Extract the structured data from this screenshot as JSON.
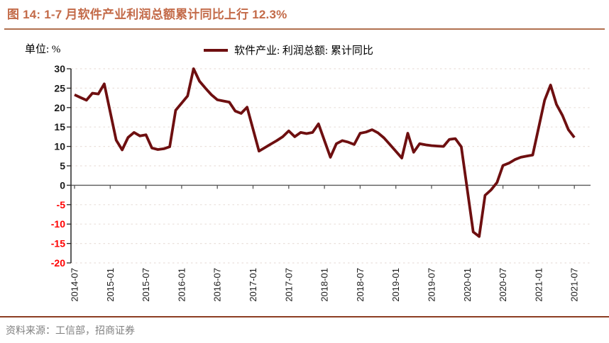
{
  "header": {
    "title": "图 14:  1-7 月软件产业利润总额累计同比上行 12.3%"
  },
  "footer": {
    "source_prefix": "资料来源：",
    "source_text": "工信部，招商证券"
  },
  "chart_data": {
    "type": "line",
    "title": "1-7 月软件产业利润总额累计同比上行 12.3%",
    "unit_label": "单位: %",
    "legend_label": "软件产业: 利润总额: 累计同比",
    "legend_position": "top center",
    "grid": "horizontal dashed lines at every 5 units, solid gray axis at 0",
    "ylim": [
      -20,
      30
    ],
    "yticks": [
      30,
      25,
      20,
      15,
      10,
      5,
      0,
      -5,
      -10,
      -15,
      -20
    ],
    "x_tick_labels": [
      "2014-07",
      "2015-01",
      "2015-07",
      "2016-01",
      "2016-07",
      "2017-01",
      "2017-07",
      "2018-01",
      "2018-07",
      "2019-01",
      "2019-07",
      "2020-01",
      "2020-07",
      "2021-01",
      "2021-07"
    ],
    "colors": {
      "line": "#6E0F10",
      "title": "#C36A48",
      "title_rule": "#B1714F",
      "footer_rule": "#8C3D22",
      "positive_tick": "#1A1A1A",
      "negative_tick": "#FF0000",
      "grid": "#E9DFDA",
      "zero_axis": "#595959",
      "axis": "#262626",
      "source_text": "#808080"
    },
    "series": [
      {
        "name": "软件产业: 利润总额: 累计同比",
        "color": "#6E0F10",
        "points": [
          [
            "2014-07",
            23.3
          ],
          [
            "2014-08",
            22.6
          ],
          [
            "2014-09",
            21.9
          ],
          [
            "2014-10",
            23.7
          ],
          [
            "2014-11",
            23.5
          ],
          [
            "2014-12",
            26.1
          ],
          [
            "2015-02",
            11.6
          ],
          [
            "2015-03",
            9.1
          ],
          [
            "2015-04",
            12.3
          ],
          [
            "2015-05",
            13.6
          ],
          [
            "2015-06",
            12.7
          ],
          [
            "2015-07",
            13.0
          ],
          [
            "2015-08",
            9.6
          ],
          [
            "2015-09",
            9.2
          ],
          [
            "2015-10",
            9.4
          ],
          [
            "2015-11",
            9.9
          ],
          [
            "2015-12",
            19.3
          ],
          [
            "2016-02",
            23.0
          ],
          [
            "2016-03",
            30.0
          ],
          [
            "2016-04",
            26.8
          ],
          [
            "2016-05",
            25.0
          ],
          [
            "2016-06",
            23.3
          ],
          [
            "2016-07",
            22.0
          ],
          [
            "2016-08",
            21.7
          ],
          [
            "2016-09",
            21.4
          ],
          [
            "2016-10",
            19.1
          ],
          [
            "2016-11",
            18.5
          ],
          [
            "2016-12",
            20.1
          ],
          [
            "2017-02",
            8.8
          ],
          [
            "2017-03",
            9.7
          ],
          [
            "2017-04",
            10.6
          ],
          [
            "2017-05",
            11.5
          ],
          [
            "2017-06",
            12.5
          ],
          [
            "2017-07",
            14.0
          ],
          [
            "2017-08",
            12.5
          ],
          [
            "2017-09",
            13.6
          ],
          [
            "2017-10",
            13.3
          ],
          [
            "2017-11",
            13.6
          ],
          [
            "2017-12",
            15.8
          ],
          [
            "2018-02",
            7.2
          ],
          [
            "2018-03",
            10.7
          ],
          [
            "2018-04",
            11.5
          ],
          [
            "2018-05",
            11.1
          ],
          [
            "2018-06",
            10.5
          ],
          [
            "2018-07",
            13.4
          ],
          [
            "2018-08",
            13.7
          ],
          [
            "2018-09",
            14.3
          ],
          [
            "2018-10",
            13.5
          ],
          [
            "2018-11",
            12.2
          ],
          [
            "2018-12",
            10.5
          ],
          [
            "2019-02",
            7.0
          ],
          [
            "2019-03",
            13.4
          ],
          [
            "2019-04",
            8.5
          ],
          [
            "2019-05",
            10.7
          ],
          [
            "2019-06",
            10.4
          ],
          [
            "2019-07",
            10.2
          ],
          [
            "2019-08",
            10.1
          ],
          [
            "2019-09",
            10.0
          ],
          [
            "2019-10",
            11.8
          ],
          [
            "2019-11",
            12.0
          ],
          [
            "2019-12",
            9.9
          ],
          [
            "2020-02",
            -12.0
          ],
          [
            "2020-03",
            -13.2
          ],
          [
            "2020-04",
            -2.6
          ],
          [
            "2020-05",
            -1.2
          ],
          [
            "2020-06",
            0.7
          ],
          [
            "2020-07",
            5.1
          ],
          [
            "2020-08",
            5.7
          ],
          [
            "2020-09",
            6.6
          ],
          [
            "2020-10",
            7.2
          ],
          [
            "2020-11",
            7.5
          ],
          [
            "2020-12",
            7.8
          ],
          [
            "2021-02",
            21.9
          ],
          [
            "2021-03",
            25.8
          ],
          [
            "2021-04",
            20.8
          ],
          [
            "2021-05",
            18.0
          ],
          [
            "2021-06",
            14.3
          ],
          [
            "2021-07",
            12.3
          ]
        ]
      }
    ]
  }
}
